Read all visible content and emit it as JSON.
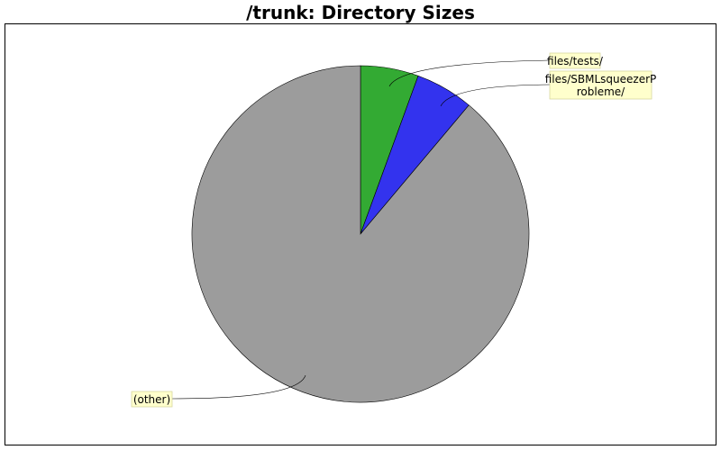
{
  "chart_data": {
    "type": "pie",
    "title": "/trunk: Directory Sizes",
    "slices": [
      {
        "label": "files/tests/",
        "lines": [
          "files/tests/"
        ],
        "fraction": 0.0556,
        "color": "#33aa33"
      },
      {
        "label": "files/SBMLsqueezerProbleme/",
        "lines": [
          "files/SBMLsqueezerP",
          "robleme/"
        ],
        "fraction": 0.0556,
        "color": "#3333ee"
      },
      {
        "label": "(other)",
        "lines": [
          "(other)"
        ],
        "fraction": 0.8888,
        "color": "#9c9c9c"
      }
    ],
    "start_angle_deg": 0,
    "direction": "clockwise",
    "label_background": "#ffffcc"
  }
}
